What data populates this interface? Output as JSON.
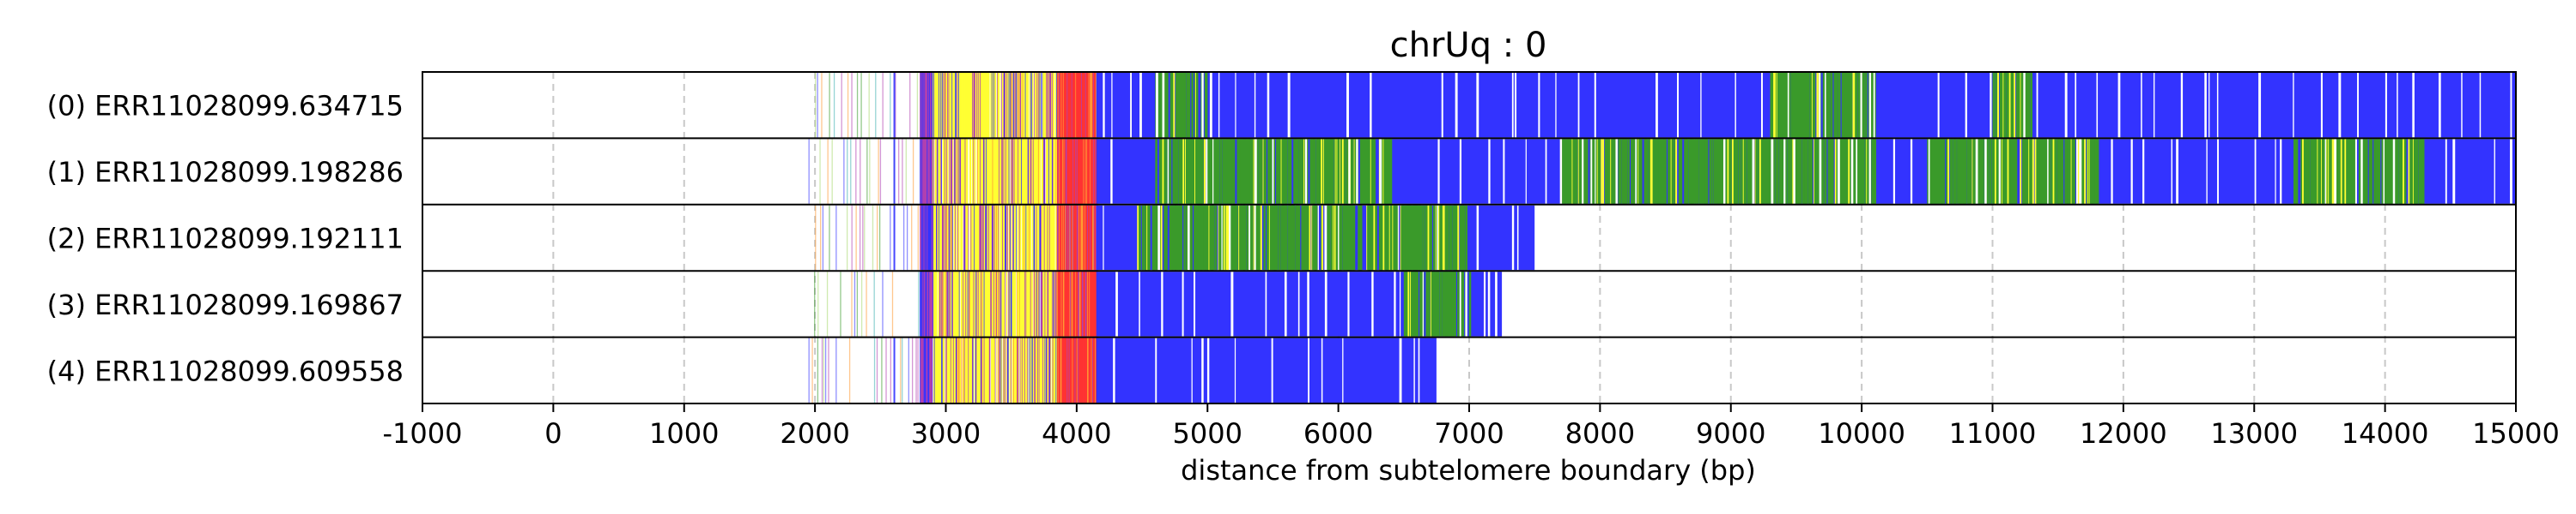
{
  "chart_data": {
    "type": "heatmap",
    "title": "chrUq : 0",
    "xlabel": "distance from subtelomere boundary (bp)",
    "ylabel": "",
    "xlim": [
      -1000,
      15000
    ],
    "x_ticks": [
      -1000,
      0,
      1000,
      2000,
      3000,
      4000,
      5000,
      6000,
      7000,
      8000,
      9000,
      10000,
      11000,
      12000,
      13000,
      14000,
      15000
    ],
    "x_tick_labels": [
      "-1000",
      "0",
      "1000",
      "2000",
      "3000",
      "4000",
      "5000",
      "6000",
      "7000",
      "8000",
      "9000",
      "10000",
      "11000",
      "12000",
      "13000",
      "14000",
      "15000"
    ],
    "grid": "vertical dashed at x ticks",
    "colors": {
      "blue": "#3333ff",
      "green": "#3a9a2a",
      "yellow": "#ffff33",
      "red": "#ff3333",
      "purple": "#b040b0",
      "teal": "#40b0b0",
      "orange": "#ff9933",
      "light_green": "#a8d870",
      "grid": "#c8c8c8"
    },
    "reads": [
      {
        "label": "(0) ERR11028099.634715",
        "start": 1950,
        "end": 15000,
        "segments": [
          {
            "x0": 1950,
            "x1": 2800,
            "color": "sparse"
          },
          {
            "x0": 2800,
            "x1": 2900,
            "color": "purple"
          },
          {
            "x0": 2900,
            "x1": 3850,
            "color": "yellow-purple"
          },
          {
            "x0": 3850,
            "x1": 4150,
            "color": "red"
          },
          {
            "x0": 4150,
            "x1": 15000,
            "color": "blue"
          }
        ],
        "green_zones": [
          [
            4600,
            5000
          ],
          [
            9300,
            10100
          ],
          [
            11000,
            11300
          ]
        ]
      },
      {
        "label": "(1) ERR11028099.198286",
        "start": 1950,
        "end": 15000,
        "segments": [
          {
            "x0": 1950,
            "x1": 2800,
            "color": "sparse"
          },
          {
            "x0": 2800,
            "x1": 2900,
            "color": "purple"
          },
          {
            "x0": 2900,
            "x1": 3850,
            "color": "yellow-purple"
          },
          {
            "x0": 3850,
            "x1": 4150,
            "color": "red"
          },
          {
            "x0": 4150,
            "x1": 15000,
            "color": "blue"
          }
        ],
        "green_zones": [
          [
            4600,
            6400
          ],
          [
            7700,
            10100
          ],
          [
            10500,
            11800
          ],
          [
            13300,
            14300
          ]
        ]
      },
      {
        "label": "(2) ERR11028099.192111",
        "start": 2000,
        "end": 7500,
        "segments": [
          {
            "x0": 2000,
            "x1": 2800,
            "color": "sparse"
          },
          {
            "x0": 2800,
            "x1": 2900,
            "color": "purple"
          },
          {
            "x0": 2900,
            "x1": 3850,
            "color": "yellow-purple"
          },
          {
            "x0": 3850,
            "x1": 4150,
            "color": "red"
          },
          {
            "x0": 4150,
            "x1": 7500,
            "color": "blue"
          }
        ],
        "green_zones": [
          [
            4450,
            7000
          ]
        ]
      },
      {
        "label": "(3) ERR11028099.169867",
        "start": 1950,
        "end": 7250,
        "segments": [
          {
            "x0": 1950,
            "x1": 2800,
            "color": "sparse"
          },
          {
            "x0": 2800,
            "x1": 2900,
            "color": "purple"
          },
          {
            "x0": 2900,
            "x1": 3850,
            "color": "yellow-purple"
          },
          {
            "x0": 3850,
            "x1": 4150,
            "color": "red"
          },
          {
            "x0": 4150,
            "x1": 7250,
            "color": "blue"
          }
        ],
        "green_zones": [
          [
            6500,
            7000
          ]
        ]
      },
      {
        "label": "(4) ERR11028099.609558",
        "start": 1950,
        "end": 6750,
        "segments": [
          {
            "x0": 1950,
            "x1": 2800,
            "color": "sparse"
          },
          {
            "x0": 2800,
            "x1": 2900,
            "color": "purple"
          },
          {
            "x0": 2900,
            "x1": 3850,
            "color": "yellow-purple"
          },
          {
            "x0": 3850,
            "x1": 4150,
            "color": "red"
          },
          {
            "x0": 4150,
            "x1": 6750,
            "color": "blue"
          }
        ],
        "green_zones": []
      }
    ]
  }
}
